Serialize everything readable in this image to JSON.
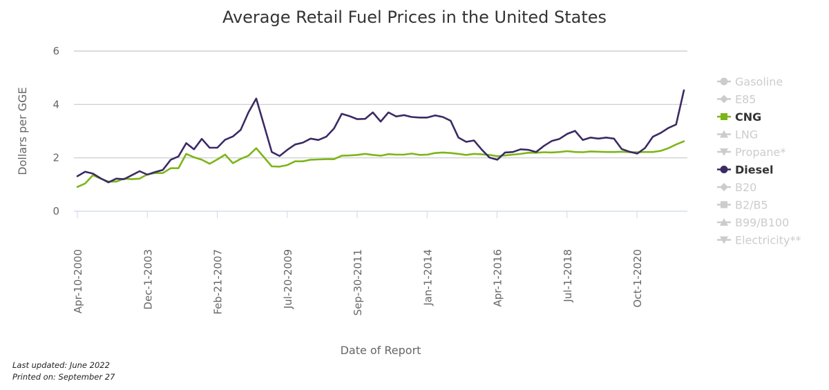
{
  "chart_data": {
    "type": "line",
    "title": "Average Retail Fuel Prices in the United States",
    "xlabel": "Date of Report",
    "ylabel": "Dollars per GGE",
    "ylim": [
      0,
      6
    ],
    "yticks": [
      0,
      2,
      4,
      6
    ],
    "x_ticks": [
      "Apr-10-2000",
      "Dec-1-2003",
      "Feb-21-2007",
      "Jul-20-2009",
      "Sep-30-2011",
      "Jan-1-2014",
      "Apr-1-2016",
      "Jul-1-2018",
      "Oct-1-2020"
    ],
    "grid": true,
    "legend_position": "right",
    "legend": [
      {
        "label": "Gasoline",
        "marker": "circle",
        "active": false,
        "color": "#cccccc"
      },
      {
        "label": "E85",
        "marker": "diamond",
        "active": false,
        "color": "#cccccc"
      },
      {
        "label": "CNG",
        "marker": "square",
        "active": true,
        "color": "#7cb518"
      },
      {
        "label": "LNG",
        "marker": "triangle-up",
        "active": false,
        "color": "#cccccc"
      },
      {
        "label": "Propane*",
        "marker": "triangle-down",
        "active": false,
        "color": "#cccccc"
      },
      {
        "label": "Diesel",
        "marker": "circle",
        "active": true,
        "color": "#3b2a63"
      },
      {
        "label": "B20",
        "marker": "diamond",
        "active": false,
        "color": "#cccccc"
      },
      {
        "label": "B2/B5",
        "marker": "square",
        "active": false,
        "color": "#cccccc"
      },
      {
        "label": "B99/B100",
        "marker": "triangle-up",
        "active": false,
        "color": "#cccccc"
      },
      {
        "label": "Electricity**",
        "marker": "triangle-down",
        "active": false,
        "color": "#cccccc"
      }
    ],
    "series": [
      {
        "name": "Diesel",
        "color": "#3b2a63",
        "values": [
          1.31,
          1.48,
          1.41,
          1.23,
          1.08,
          1.22,
          1.2,
          1.35,
          1.5,
          1.37,
          1.47,
          1.55,
          1.93,
          2.05,
          2.55,
          2.32,
          2.71,
          2.38,
          2.38,
          2.68,
          2.8,
          3.05,
          3.7,
          4.22,
          3.22,
          2.22,
          2.07,
          2.3,
          2.5,
          2.57,
          2.72,
          2.67,
          2.79,
          3.1,
          3.65,
          3.56,
          3.45,
          3.46,
          3.7,
          3.36,
          3.7,
          3.55,
          3.6,
          3.53,
          3.51,
          3.51,
          3.59,
          3.53,
          3.39,
          2.76,
          2.6,
          2.65,
          2.31,
          2.01,
          1.93,
          2.2,
          2.22,
          2.32,
          2.3,
          2.22,
          2.45,
          2.63,
          2.71,
          2.9,
          3.01,
          2.67,
          2.76,
          2.72,
          2.76,
          2.72,
          2.33,
          2.23,
          2.16,
          2.37,
          2.79,
          2.93,
          3.12,
          3.25,
          4.53
        ]
      },
      {
        "name": "CNG",
        "color": "#7cb518",
        "values": [
          0.91,
          1.04,
          1.35,
          1.22,
          1.11,
          1.11,
          1.22,
          1.2,
          1.22,
          1.38,
          1.43,
          1.43,
          1.61,
          1.61,
          2.15,
          2.02,
          1.93,
          1.78,
          1.94,
          2.12,
          1.8,
          1.96,
          2.08,
          2.36,
          2.02,
          1.68,
          1.67,
          1.73,
          1.87,
          1.87,
          1.93,
          1.94,
          1.95,
          1.95,
          2.08,
          2.09,
          2.11,
          2.15,
          2.11,
          2.08,
          2.14,
          2.12,
          2.12,
          2.16,
          2.11,
          2.12,
          2.18,
          2.2,
          2.18,
          2.15,
          2.11,
          2.15,
          2.13,
          2.11,
          2.06,
          2.09,
          2.12,
          2.15,
          2.19,
          2.19,
          2.21,
          2.2,
          2.22,
          2.25,
          2.22,
          2.21,
          2.24,
          2.23,
          2.22,
          2.22,
          2.23,
          2.21,
          2.21,
          2.22,
          2.22,
          2.26,
          2.36,
          2.5,
          2.62
        ]
      }
    ]
  },
  "footer": {
    "last_updated": "Last updated: June 2022",
    "printed_on": "Printed on: September 27"
  }
}
